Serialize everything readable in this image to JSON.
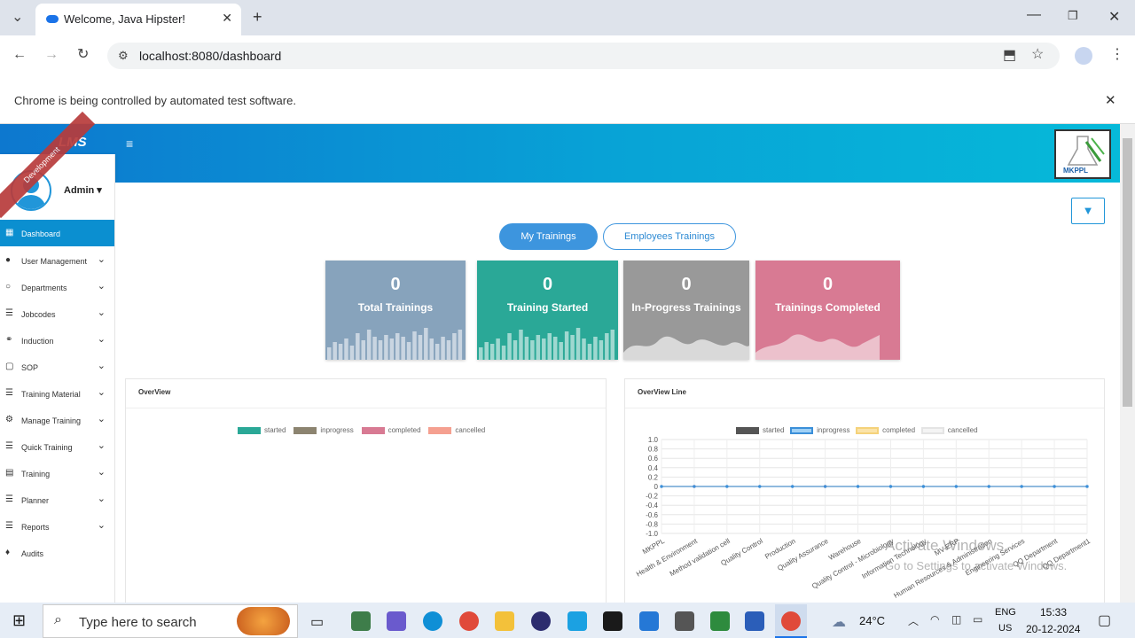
{
  "browser": {
    "tab_title": "Welcome, Java Hipster!",
    "url": "localhost:8080/dashboard",
    "infobar": "Chrome is being controlled by automated test software."
  },
  "app": {
    "logo": "LMS",
    "ribbon": "Development",
    "user": "Admin",
    "brand_badge": "MKPPL"
  },
  "sidebar": {
    "items": [
      {
        "label": "Dashboard"
      },
      {
        "label": "User Management"
      },
      {
        "label": "Departments"
      },
      {
        "label": "Jobcodes"
      },
      {
        "label": "Induction"
      },
      {
        "label": "SOP"
      },
      {
        "label": "Training Material"
      },
      {
        "label": "Manage Training"
      },
      {
        "label": "Quick Training"
      },
      {
        "label": "Training"
      },
      {
        "label": "Planner"
      },
      {
        "label": "Reports"
      },
      {
        "label": "Audits"
      }
    ]
  },
  "dashboard": {
    "tabs": [
      "My Trainings",
      "Employees Trainings"
    ],
    "cards": [
      {
        "value": "0",
        "label": "Total Trainings",
        "color": "#87a3bc"
      },
      {
        "value": "0",
        "label": "Training Started",
        "color": "#2aa897"
      },
      {
        "value": "0",
        "label": "In-Progress Trainings",
        "color": "#999999"
      },
      {
        "value": "0",
        "label": "Trainings Completed",
        "color": "#d87a93"
      }
    ],
    "panels": {
      "overview": {
        "title": "OverView"
      },
      "overview_line": {
        "title": "OverView Line"
      }
    },
    "legend": [
      "started",
      "inprogress",
      "completed",
      "cancelled"
    ]
  },
  "chart_data": {
    "type": "line",
    "title": "OverView Line",
    "categories": [
      "MKPPL",
      "Health & Environment",
      "Method validation cell",
      "Quality Control",
      "Production",
      "Quality Assurance",
      "Warehouse",
      "Quality Control - Microbiology",
      "Information Technology",
      "MV-ERP",
      "Human Resources & Administration",
      "Engineering Services",
      "QQ Department",
      "QQ Department1"
    ],
    "series": [
      {
        "name": "started",
        "values": [
          0,
          0,
          0,
          0,
          0,
          0,
          0,
          0,
          0,
          0,
          0,
          0,
          0,
          0
        ]
      },
      {
        "name": "inprogress",
        "values": [
          0,
          0,
          0,
          0,
          0,
          0,
          0,
          0,
          0,
          0,
          0,
          0,
          0,
          0
        ]
      },
      {
        "name": "completed",
        "values": [
          0,
          0,
          0,
          0,
          0,
          0,
          0,
          0,
          0,
          0,
          0,
          0,
          0,
          0
        ]
      },
      {
        "name": "cancelled",
        "values": [
          0,
          0,
          0,
          0,
          0,
          0,
          0,
          0,
          0,
          0,
          0,
          0,
          0,
          0
        ]
      }
    ],
    "yticks": [
      "1.0",
      "0.8",
      "0.6",
      "0.4",
      "0.2",
      "0",
      "-0.2",
      "-0.4",
      "-0.6",
      "-0.8",
      "-1.0"
    ],
    "ylim": [
      -1,
      1
    ],
    "grid": true,
    "legend": "top"
  },
  "watermark": {
    "line1": "Activate Windows",
    "line2": "Go to Settings to activate Windows."
  },
  "taskbar": {
    "search_placeholder": "Type here to search",
    "weather": "24°C",
    "lang1": "ENG",
    "lang2": "US",
    "time": "15:33",
    "date": "20-12-2024"
  }
}
